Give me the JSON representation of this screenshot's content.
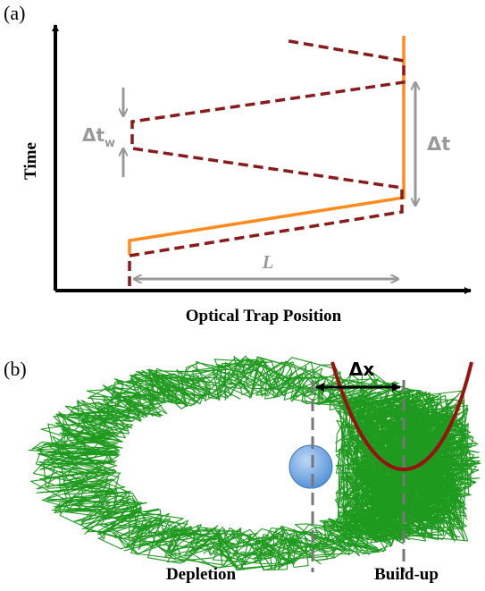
{
  "panel_a": {
    "label": "(a)",
    "y_axis_label": "Time",
    "x_axis_label": "Optical Trap Position",
    "delta_t_w": {
      "main": "Δt",
      "sub": "w"
    },
    "delta_t": "Δt",
    "length": "L"
  },
  "panel_b": {
    "label": "(b)",
    "delta_x": "Δx",
    "left_label": "Depletion",
    "right_label": "Build-up"
  }
}
